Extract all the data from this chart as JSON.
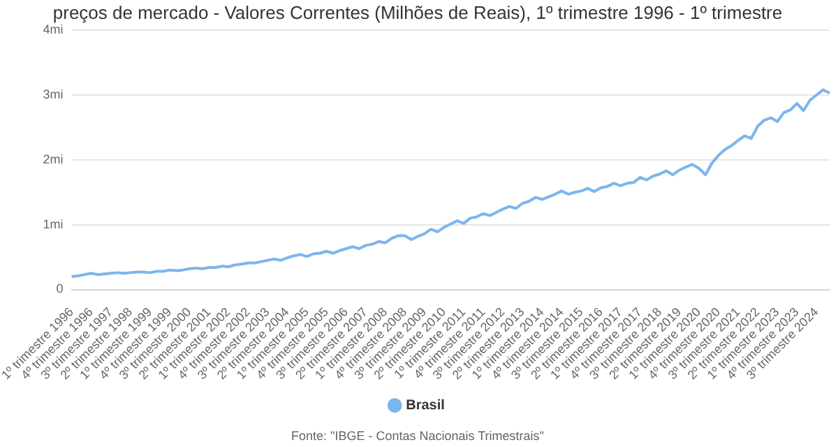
{
  "chart_data": {
    "type": "line",
    "title": "preços de mercado - Valores Correntes (Milhões de Reais), 1º trimestre 1996 - 1º trimestre",
    "categories": [
      "1º trimestre 1996",
      null,
      null,
      "4º trimestre 1996",
      null,
      null,
      "3º trimestre 1997",
      null,
      null,
      "2º trimestre 1998",
      null,
      null,
      "1º trimestre 1999",
      null,
      null,
      "4º trimestre 1999",
      null,
      null,
      "3º trimestre 2000",
      null,
      null,
      "2º trimestre 2001",
      null,
      null,
      "1º trimestre 2002",
      null,
      null,
      "4º trimestre 2002",
      null,
      null,
      "3º trimestre 2003",
      null,
      null,
      "2º trimestre 2004",
      null,
      null,
      "1º trimestre 2005",
      null,
      null,
      "4º trimestre 2005",
      null,
      null,
      "3º trimestre 2006",
      null,
      null,
      "2º trimestre 2007",
      null,
      null,
      "1º trimestre 2008",
      null,
      null,
      "4º trimestre 2008",
      null,
      null,
      "3º trimestre 2009",
      null,
      null,
      "2º trimestre 2010",
      null,
      null,
      "1º trimestre 2011",
      null,
      null,
      "4º trimestre 2011",
      null,
      null,
      "3º trimestre 2012",
      null,
      null,
      "2º trimestre 2013",
      null,
      null,
      "1º trimestre 2014",
      null,
      null,
      "4º trimestre 2014",
      null,
      null,
      "3º trimestre 2015",
      null,
      null,
      "2º trimestre 2016",
      null,
      null,
      "1º trimestre 2017",
      null,
      null,
      "4º trimestre 2017",
      null,
      null,
      "3º trimestre 2018",
      null,
      null,
      "2º trimestre 2019",
      null,
      null,
      "1º trimestre 2020",
      null,
      null,
      "4º trimestre 2020",
      null,
      null,
      "3º trimestre 2021",
      null,
      null,
      "2º trimestre 2022",
      null,
      null,
      "1º trimestre 2023",
      null,
      null,
      "4º trimestre 2023",
      null,
      null,
      "3º trimestre 2024",
      null,
      null
    ],
    "series": [
      {
        "name": "Brasil",
        "color": "#7cb5ec",
        "values": [
          0.2,
          0.21,
          0.23,
          0.25,
          0.23,
          0.24,
          0.25,
          0.26,
          0.25,
          0.26,
          0.27,
          0.27,
          0.26,
          0.28,
          0.28,
          0.3,
          0.29,
          0.3,
          0.32,
          0.33,
          0.32,
          0.34,
          0.34,
          0.36,
          0.35,
          0.38,
          0.39,
          0.41,
          0.41,
          0.43,
          0.45,
          0.47,
          0.45,
          0.49,
          0.52,
          0.54,
          0.51,
          0.55,
          0.56,
          0.59,
          0.56,
          0.6,
          0.63,
          0.66,
          0.63,
          0.68,
          0.7,
          0.74,
          0.72,
          0.79,
          0.83,
          0.83,
          0.77,
          0.82,
          0.86,
          0.93,
          0.89,
          0.96,
          1.01,
          1.06,
          1.02,
          1.1,
          1.12,
          1.17,
          1.14,
          1.19,
          1.24,
          1.28,
          1.25,
          1.33,
          1.36,
          1.42,
          1.39,
          1.43,
          1.47,
          1.52,
          1.47,
          1.5,
          1.52,
          1.56,
          1.51,
          1.57,
          1.59,
          1.64,
          1.6,
          1.64,
          1.65,
          1.73,
          1.69,
          1.75,
          1.78,
          1.83,
          1.77,
          1.84,
          1.89,
          1.93,
          1.87,
          1.77,
          1.95,
          2.07,
          2.16,
          2.22,
          2.3,
          2.37,
          2.33,
          2.52,
          2.61,
          2.65,
          2.59,
          2.73,
          2.77,
          2.87,
          2.76,
          2.92,
          3.0,
          3.08,
          3.03
        ]
      }
    ],
    "ylim": [
      0,
      4
    ],
    "yticks": [
      0,
      {
        "value": 1,
        "label": "1mi"
      },
      {
        "value": 2,
        "label": "2mi"
      },
      {
        "value": 3,
        "label": "3mi"
      },
      {
        "value": 4,
        "label": "4mi"
      }
    ],
    "grid": "y",
    "legend": "bottom",
    "marker": "none",
    "line_style": "solid",
    "annotations": [
      "Fonte: \"IBGE - Contas Nacionais Trimestrais\""
    ]
  }
}
